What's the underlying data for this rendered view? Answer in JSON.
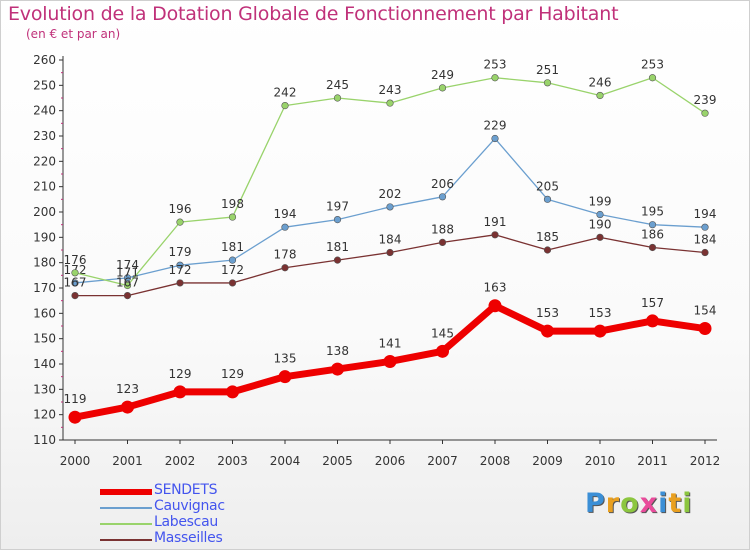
{
  "header": {
    "title": "Evolution de la Dotation Globale de Fonctionnement par Habitant",
    "subtitle": "(en € et par an)"
  },
  "logo": {
    "letters": [
      {
        "ch": "P",
        "color": "#3b8fd6"
      },
      {
        "ch": "r",
        "color": "#e9a020"
      },
      {
        "ch": "o",
        "color": "#8cc63f"
      },
      {
        "ch": "x",
        "color": "#e94b9b"
      },
      {
        "ch": "i",
        "color": "#3b8fd6"
      },
      {
        "ch": "t",
        "color": "#e9a020"
      },
      {
        "ch": "i",
        "color": "#8cc63f"
      }
    ]
  },
  "chart_data": {
    "type": "line",
    "title": "Evolution de la Dotation Globale de Fonctionnement par Habitant",
    "subtitle": "(en € et par an)",
    "xlabel": "",
    "ylabel": "",
    "x": [
      "2000",
      "2001",
      "2002",
      "2003",
      "2004",
      "2005",
      "2006",
      "2007",
      "2008",
      "2009",
      "2010",
      "2011",
      "2012"
    ],
    "ylim": [
      110,
      260
    ],
    "ytick_step": 10,
    "grid": false,
    "legend_position": "bottom-left",
    "series": [
      {
        "name": "SENDETS",
        "color": "#ee0000",
        "values": [
          119,
          123,
          129,
          129,
          135,
          138,
          141,
          145,
          163,
          153,
          153,
          157,
          154
        ]
      },
      {
        "name": "Cauvignac",
        "color": "#6b9fcf",
        "values": [
          172,
          174,
          179,
          181,
          194,
          197,
          202,
          206,
          229,
          205,
          199,
          195,
          194
        ]
      },
      {
        "name": "Labescau",
        "color": "#99d36b",
        "values": [
          176,
          171,
          196,
          198,
          242,
          245,
          243,
          249,
          253,
          251,
          246,
          253,
          239
        ]
      },
      {
        "name": "Masseilles",
        "color": "#7a3232",
        "values": [
          167,
          167,
          172,
          172,
          178,
          181,
          184,
          188,
          191,
          185,
          190,
          186,
          184
        ]
      }
    ]
  }
}
